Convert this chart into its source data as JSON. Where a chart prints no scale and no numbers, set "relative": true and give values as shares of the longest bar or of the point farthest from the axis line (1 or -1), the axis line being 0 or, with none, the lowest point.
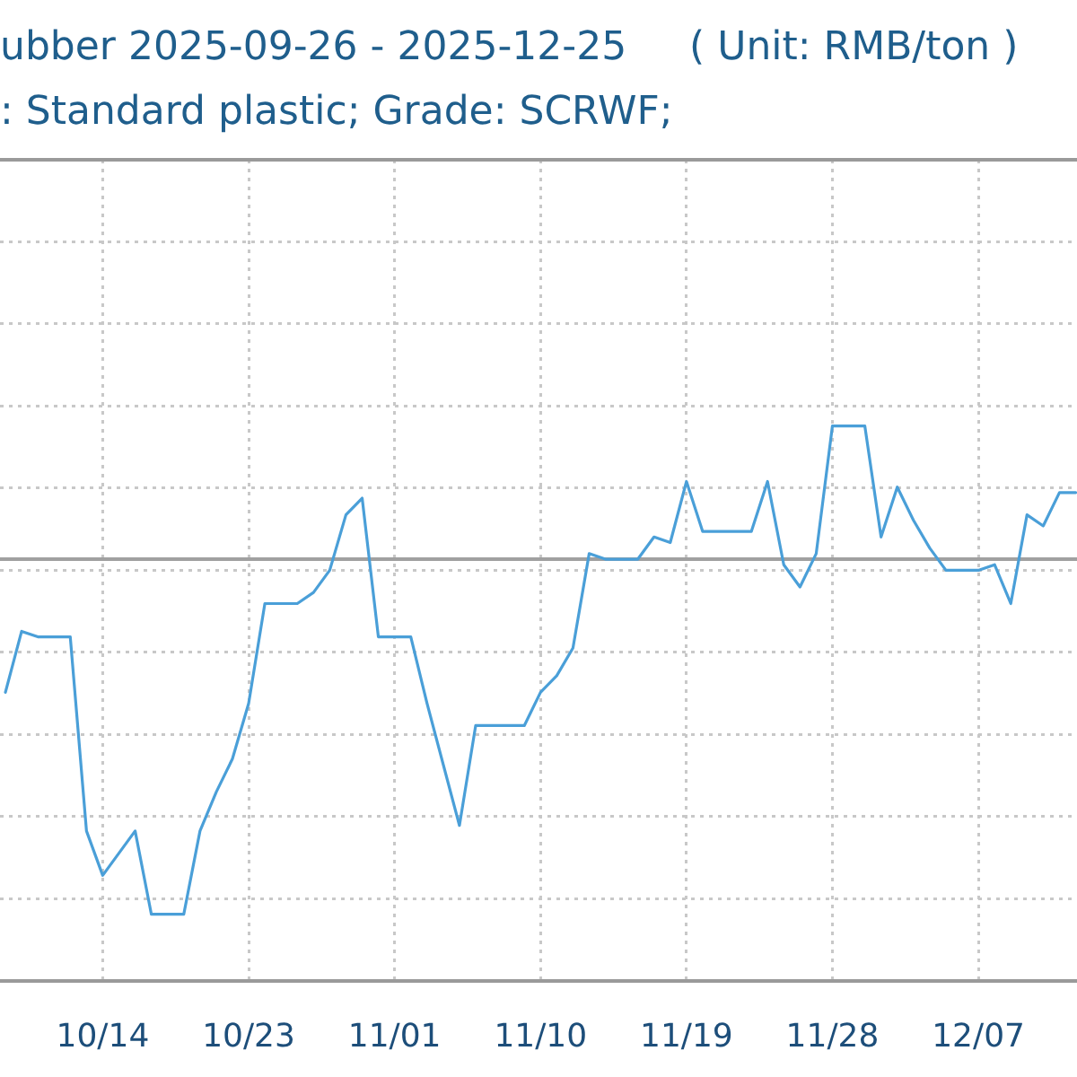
{
  "chart_data": {
    "type": "line",
    "title": "ubber 2025-09-26 - 2025-12-25     ( Unit: RMB/ton )",
    "subtitle": ": Standard plastic; Grade: SCRWF;",
    "relative": true,
    "grid": true,
    "marker": "none",
    "color": "#4a9fd8",
    "xlim": [
      "2025-10-07T16:00",
      "2025-12-13T02:00"
    ],
    "xticks": [
      {
        "value": "2025-10-14",
        "label": "10/14"
      },
      {
        "value": "2025-10-23",
        "label": "10/23"
      },
      {
        "value": "2025-11-01",
        "label": "11/01"
      },
      {
        "value": "2025-11-10",
        "label": "11/10"
      },
      {
        "value": "2025-11-19",
        "label": "11/19"
      },
      {
        "value": "2025-11-28",
        "label": "11/28"
      },
      {
        "value": "2025-12-07",
        "label": "12/07"
      }
    ],
    "x": [
      "2025-10-08",
      "2025-10-09",
      "2025-10-10",
      "2025-10-11",
      "2025-10-12",
      "2025-10-13",
      "2025-10-14",
      "2025-10-15",
      "2025-10-16",
      "2025-10-17",
      "2025-10-18",
      "2025-10-19",
      "2025-10-20",
      "2025-10-21",
      "2025-10-22",
      "2025-10-23",
      "2025-10-24",
      "2025-10-25",
      "2025-10-26",
      "2025-10-27",
      "2025-10-28",
      "2025-10-29",
      "2025-10-30",
      "2025-10-31",
      "2025-11-01",
      "2025-11-02",
      "2025-11-03",
      "2025-11-04",
      "2025-11-05",
      "2025-11-06",
      "2025-11-07",
      "2025-11-08",
      "2025-11-09",
      "2025-11-10",
      "2025-11-11",
      "2025-11-12",
      "2025-11-13",
      "2025-11-14",
      "2025-11-15",
      "2025-11-16",
      "2025-11-17",
      "2025-11-18",
      "2025-11-19",
      "2025-11-20",
      "2025-11-21",
      "2025-11-22",
      "2025-11-23",
      "2025-11-24",
      "2025-11-25",
      "2025-11-26",
      "2025-11-27",
      "2025-11-28",
      "2025-11-29",
      "2025-11-30",
      "2025-12-01",
      "2025-12-02",
      "2025-12-03",
      "2025-12-04",
      "2025-12-05",
      "2025-12-06",
      "2025-12-07",
      "2025-12-08",
      "2025-12-09",
      "2025-12-10",
      "2025-12-11",
      "2025-12-12",
      "2025-12-13"
    ],
    "values": [
      0.52,
      0.63,
      0.62,
      0.62,
      0.62,
      0.27,
      0.19,
      0.23,
      0.27,
      0.12,
      0.12,
      0.12,
      0.27,
      0.34,
      0.4,
      0.5,
      0.68,
      0.68,
      0.68,
      0.7,
      0.74,
      0.84,
      0.87,
      0.62,
      0.62,
      0.62,
      0.5,
      0.39,
      0.28,
      0.46,
      0.46,
      0.46,
      0.46,
      0.52,
      0.55,
      0.6,
      0.77,
      0.76,
      0.76,
      0.76,
      0.8,
      0.79,
      0.9,
      0.81,
      0.81,
      0.81,
      0.81,
      0.9,
      0.75,
      0.71,
      0.77,
      1,
      1,
      1,
      0.8,
      0.89,
      0.83,
      0.78,
      0.74,
      0.74,
      0.74,
      0.75,
      0.68,
      0.84,
      0.82,
      0.88,
      0.88
    ],
    "ref_lines": [
      {
        "axis": "y",
        "value": 0.76,
        "color": "#a0a0a0"
      }
    ]
  }
}
